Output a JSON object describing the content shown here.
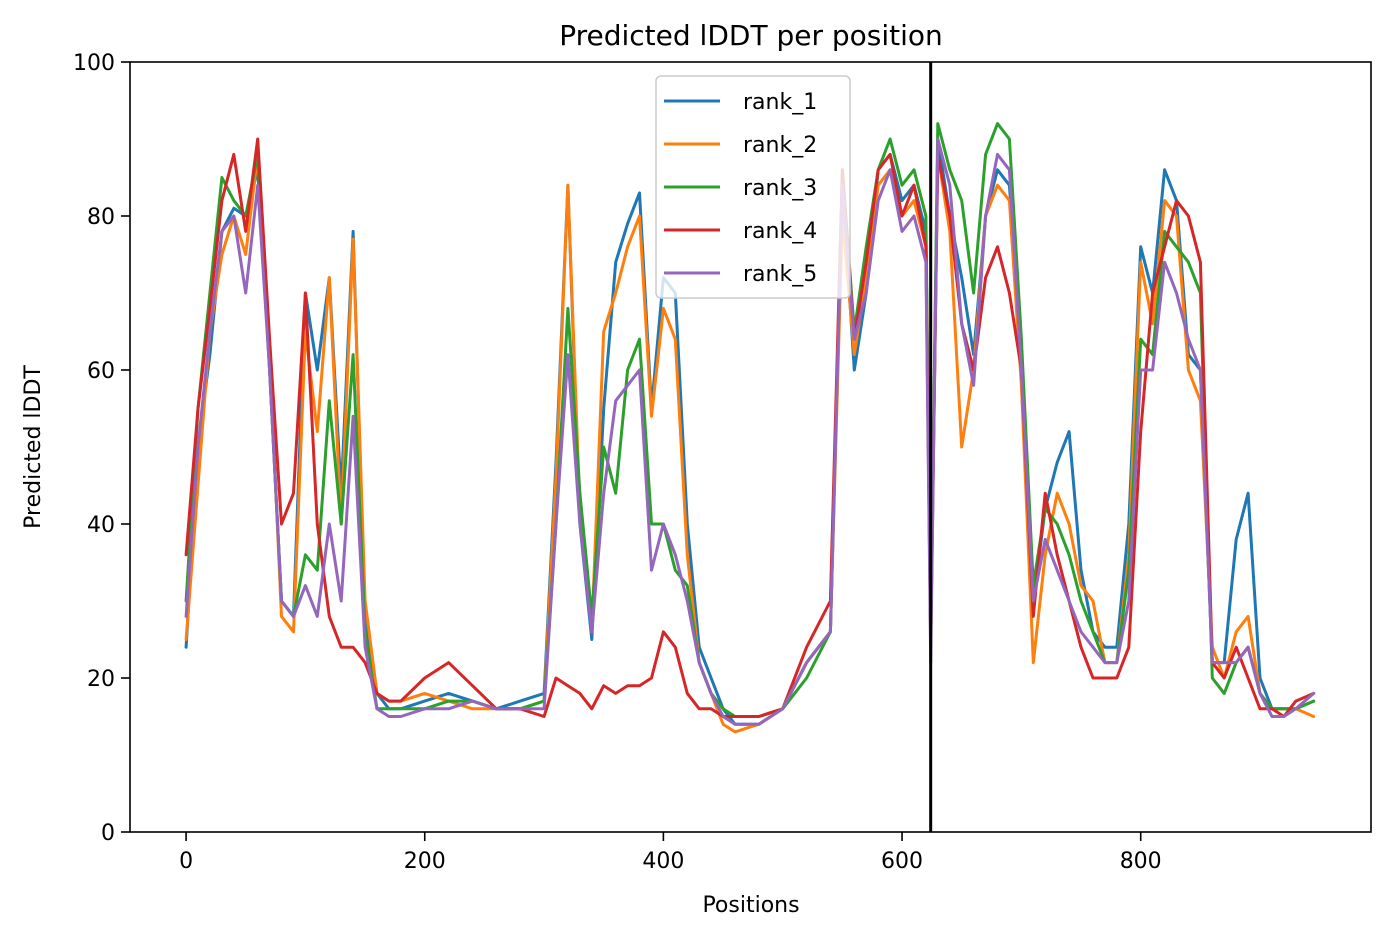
{
  "chart_data": {
    "type": "line",
    "title": "Predicted lDDT per position",
    "xlabel": "Positions",
    "ylabel": "Predicted lDDT",
    "xlim": [
      -47,
      993
    ],
    "ylim": [
      0,
      100
    ],
    "xticks": [
      0,
      200,
      400,
      600,
      800
    ],
    "yticks": [
      0,
      20,
      40,
      60,
      80,
      100
    ],
    "vline_x": 624,
    "legend_position": "top-center",
    "grid": false,
    "series": [
      {
        "name": "rank_1",
        "color": "#1f77b4",
        "x": [
          0,
          10,
          20,
          30,
          40,
          50,
          60,
          70,
          80,
          90,
          100,
          110,
          120,
          130,
          140,
          150,
          160,
          170,
          180,
          200,
          220,
          240,
          260,
          280,
          300,
          310,
          320,
          330,
          340,
          350,
          360,
          370,
          380,
          390,
          400,
          410,
          420,
          430,
          440,
          450,
          460,
          480,
          500,
          520,
          540,
          550,
          560,
          570,
          580,
          590,
          600,
          610,
          620,
          624,
          630,
          640,
          650,
          660,
          670,
          680,
          690,
          700,
          710,
          720,
          730,
          740,
          750,
          760,
          770,
          780,
          790,
          800,
          810,
          820,
          830,
          840,
          850,
          860,
          870,
          880,
          890,
          900,
          910,
          920,
          930,
          945
        ],
        "y": [
          24,
          50,
          62,
          78,
          81,
          80,
          86,
          60,
          30,
          28,
          70,
          60,
          72,
          44,
          78,
          28,
          18,
          16,
          16,
          17,
          18,
          17,
          16,
          17,
          18,
          48,
          84,
          40,
          25,
          55,
          74,
          79,
          83,
          55,
          72,
          70,
          40,
          24,
          20,
          16,
          14,
          14,
          16,
          22,
          26,
          84,
          60,
          70,
          86,
          88,
          82,
          84,
          78,
          25,
          90,
          80,
          72,
          62,
          80,
          86,
          84,
          62,
          30,
          42,
          48,
          52,
          34,
          26,
          24,
          24,
          40,
          76,
          70,
          86,
          82,
          62,
          60,
          22,
          22,
          38,
          44,
          20,
          16,
          16,
          16,
          17
        ]
      },
      {
        "name": "rank_2",
        "color": "#ff7f0e",
        "x": [
          0,
          10,
          20,
          30,
          40,
          50,
          60,
          70,
          80,
          90,
          100,
          110,
          120,
          130,
          140,
          150,
          160,
          170,
          180,
          200,
          220,
          240,
          260,
          280,
          300,
          310,
          320,
          330,
          340,
          350,
          360,
          370,
          380,
          390,
          400,
          410,
          420,
          430,
          440,
          450,
          460,
          480,
          500,
          520,
          540,
          550,
          560,
          570,
          580,
          590,
          600,
          610,
          620,
          624,
          630,
          640,
          650,
          660,
          670,
          680,
          690,
          700,
          710,
          720,
          730,
          740,
          750,
          760,
          770,
          780,
          790,
          800,
          810,
          820,
          830,
          840,
          850,
          860,
          870,
          880,
          890,
          900,
          910,
          920,
          930,
          945
        ],
        "y": [
          25,
          45,
          65,
          75,
          80,
          75,
          88,
          62,
          28,
          26,
          65,
          52,
          72,
          40,
          77,
          30,
          18,
          17,
          17,
          18,
          17,
          16,
          16,
          16,
          17,
          46,
          84,
          42,
          26,
          65,
          70,
          76,
          80,
          54,
          68,
          64,
          36,
          22,
          18,
          14,
          13,
          14,
          16,
          22,
          26,
          80,
          62,
          72,
          84,
          86,
          80,
          82,
          76,
          26,
          88,
          78,
          50,
          60,
          80,
          84,
          82,
          58,
          22,
          36,
          44,
          40,
          32,
          30,
          22,
          22,
          36,
          74,
          66,
          82,
          80,
          60,
          56,
          24,
          20,
          26,
          28,
          18,
          16,
          16,
          16,
          15
        ]
      },
      {
        "name": "rank_3",
        "color": "#2ca02c",
        "x": [
          0,
          10,
          20,
          30,
          40,
          50,
          60,
          70,
          80,
          90,
          100,
          110,
          120,
          130,
          140,
          150,
          160,
          170,
          180,
          200,
          220,
          240,
          260,
          280,
          300,
          310,
          320,
          330,
          340,
          350,
          360,
          370,
          380,
          390,
          400,
          410,
          420,
          430,
          440,
          450,
          460,
          480,
          500,
          520,
          540,
          550,
          560,
          570,
          580,
          590,
          600,
          610,
          620,
          624,
          630,
          640,
          650,
          660,
          670,
          680,
          690,
          700,
          710,
          720,
          730,
          740,
          750,
          760,
          770,
          780,
          790,
          800,
          810,
          820,
          830,
          840,
          850,
          860,
          870,
          880,
          890,
          900,
          910,
          920,
          930,
          945
        ],
        "y": [
          30,
          55,
          70,
          85,
          82,
          80,
          88,
          60,
          30,
          28,
          36,
          34,
          56,
          40,
          62,
          26,
          16,
          16,
          16,
          16,
          17,
          17,
          16,
          16,
          17,
          40,
          68,
          44,
          28,
          50,
          44,
          60,
          64,
          40,
          40,
          34,
          32,
          22,
          18,
          16,
          15,
          15,
          16,
          20,
          26,
          86,
          65,
          76,
          86,
          90,
          84,
          86,
          80,
          26,
          92,
          86,
          82,
          70,
          88,
          92,
          90,
          64,
          32,
          42,
          40,
          36,
          30,
          26,
          22,
          22,
          34,
          64,
          62,
          78,
          76,
          74,
          70,
          20,
          18,
          22,
          24,
          18,
          16,
          16,
          16,
          17
        ]
      },
      {
        "name": "rank_4",
        "color": "#d62728",
        "x": [
          0,
          10,
          20,
          30,
          40,
          50,
          60,
          70,
          80,
          90,
          100,
          110,
          120,
          130,
          140,
          150,
          160,
          170,
          180,
          200,
          220,
          240,
          260,
          280,
          300,
          310,
          320,
          330,
          340,
          350,
          360,
          370,
          380,
          390,
          400,
          410,
          420,
          430,
          440,
          450,
          460,
          480,
          500,
          520,
          540,
          550,
          560,
          570,
          580,
          590,
          600,
          610,
          620,
          624,
          630,
          640,
          650,
          660,
          670,
          680,
          690,
          700,
          710,
          720,
          730,
          740,
          750,
          760,
          770,
          780,
          790,
          800,
          810,
          820,
          830,
          840,
          850,
          860,
          870,
          880,
          890,
          900,
          910,
          920,
          930,
          945
        ],
        "y": [
          36,
          55,
          68,
          82,
          88,
          78,
          90,
          64,
          40,
          44,
          70,
          40,
          28,
          24,
          24,
          22,
          18,
          17,
          17,
          20,
          22,
          19,
          16,
          16,
          15,
          20,
          19,
          18,
          16,
          19,
          18,
          19,
          19,
          20,
          26,
          24,
          18,
          16,
          16,
          15,
          15,
          15,
          16,
          24,
          30,
          86,
          64,
          74,
          86,
          88,
          80,
          84,
          76,
          24,
          88,
          80,
          66,
          60,
          72,
          76,
          70,
          60,
          28,
          44,
          36,
          30,
          24,
          20,
          20,
          20,
          24,
          52,
          70,
          76,
          82,
          80,
          74,
          22,
          20,
          24,
          20,
          16,
          16,
          15,
          17,
          18
        ]
      },
      {
        "name": "rank_5",
        "color": "#9467bd",
        "x": [
          0,
          10,
          20,
          30,
          40,
          50,
          60,
          70,
          80,
          90,
          100,
          110,
          120,
          130,
          140,
          150,
          160,
          170,
          180,
          200,
          220,
          240,
          260,
          280,
          300,
          310,
          320,
          330,
          340,
          350,
          360,
          370,
          380,
          390,
          400,
          410,
          420,
          430,
          440,
          450,
          460,
          480,
          500,
          520,
          540,
          550,
          560,
          570,
          580,
          590,
          600,
          610,
          620,
          624,
          630,
          640,
          650,
          660,
          670,
          680,
          690,
          700,
          710,
          720,
          730,
          740,
          750,
          760,
          770,
          780,
          790,
          800,
          810,
          820,
          830,
          840,
          850,
          860,
          870,
          880,
          890,
          900,
          910,
          920,
          930,
          945
        ],
        "y": [
          28,
          50,
          65,
          78,
          80,
          70,
          84,
          60,
          30,
          28,
          32,
          28,
          40,
          30,
          54,
          24,
          16,
          15,
          15,
          16,
          16,
          17,
          16,
          16,
          16,
          40,
          62,
          40,
          26,
          44,
          56,
          58,
          60,
          34,
          40,
          36,
          30,
          22,
          18,
          15,
          14,
          14,
          16,
          22,
          26,
          84,
          64,
          70,
          82,
          86,
          78,
          80,
          74,
          22,
          90,
          84,
          66,
          58,
          80,
          88,
          86,
          60,
          30,
          38,
          34,
          30,
          26,
          24,
          22,
          22,
          30,
          60,
          60,
          74,
          70,
          64,
          60,
          22,
          22,
          22,
          24,
          18,
          15,
          15,
          16,
          18
        ]
      }
    ]
  }
}
